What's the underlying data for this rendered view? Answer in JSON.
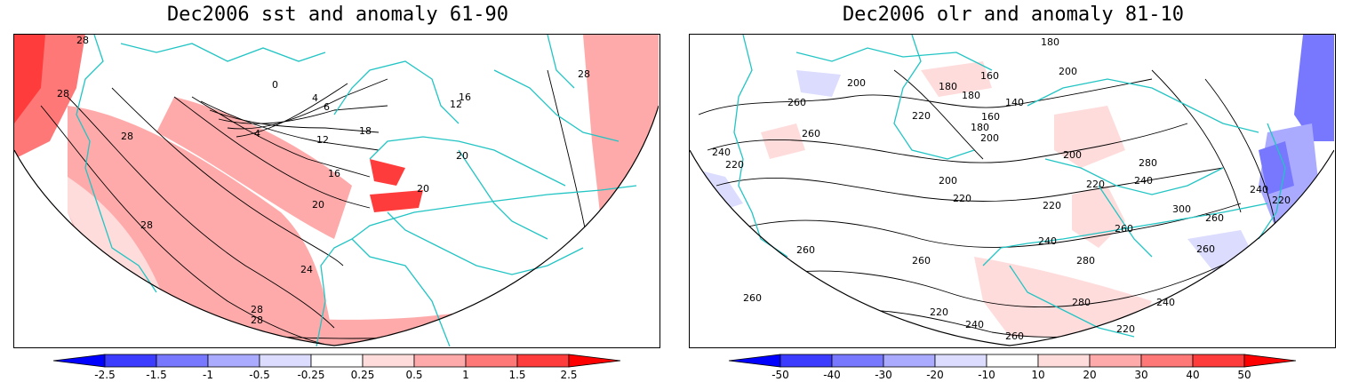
{
  "panels": [
    {
      "title": "Dec2006 sst and anomaly 61-90",
      "contour_labels": [
        "28",
        "28",
        "28",
        "28",
        "28",
        "28",
        "28",
        "0",
        "4",
        "6",
        "4",
        "12",
        "16",
        "20",
        "24",
        "18",
        "20",
        "20",
        "12",
        "16"
      ],
      "colorbar": {
        "labels": [
          "-2.5",
          "-1.5",
          "-1",
          "-0.5",
          "-0.25",
          "0.25",
          "0.5",
          "1",
          "1.5",
          "2.5"
        ],
        "colors": [
          "#0000ff",
          "#3c3cff",
          "#7878ff",
          "#aaaaff",
          "#dcdcff",
          "#ffffff",
          "#ffdcdc",
          "#ffaaaa",
          "#ff7878",
          "#ff3c3c",
          "#ff0000"
        ]
      }
    },
    {
      "title": "Dec2006 olr and anomaly 81-10",
      "contour_labels": [
        "260",
        "200",
        "180",
        "180",
        "140",
        "160",
        "180",
        "200",
        "220",
        "260",
        "240",
        "220",
        "200",
        "200",
        "220",
        "260",
        "220",
        "240",
        "280",
        "200",
        "220",
        "240",
        "260",
        "260",
        "280",
        "300",
        "260",
        "240",
        "220",
        "220",
        "240",
        "260",
        "280",
        "220",
        "240",
        "260",
        "260",
        "180",
        "160"
      ],
      "colorbar": {
        "labels": [
          "-50",
          "-40",
          "-30",
          "-20",
          "-10",
          "10",
          "20",
          "30",
          "40",
          "50"
        ],
        "colors": [
          "#0000ff",
          "#3c3cff",
          "#7878ff",
          "#aaaaff",
          "#dcdcff",
          "#ffffff",
          "#ffdcdc",
          "#ffaaaa",
          "#ff7878",
          "#ff3c3c",
          "#ff0000"
        ]
      }
    }
  ]
}
